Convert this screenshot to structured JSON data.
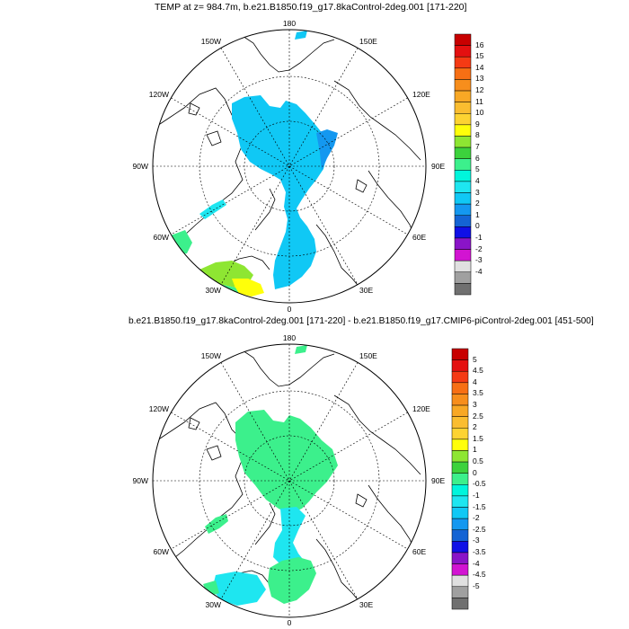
{
  "panel_top": {
    "title": "TEMP at z= 984.7m, b.e21.B1850.f19_g17.8kaControl-2deg.001 [171-220]",
    "labels": {
      "lon_180": "180",
      "lon_0": "0",
      "lon_150W": "150W",
      "lon_150E": "150E",
      "lon_120W": "120W",
      "lon_120E": "120E",
      "lon_90W": "90W",
      "lon_90E": "90E",
      "lon_60W": "60W",
      "lon_60E": "60E",
      "lon_30W": "30W",
      "lon_30E": "30E"
    },
    "colorbar": {
      "labels": [
        "16",
        "15",
        "14",
        "13",
        "12",
        "11",
        "10",
        "9",
        "8",
        "7",
        "6",
        "5",
        "4",
        "3",
        "2",
        "1",
        "0",
        "-1",
        "-2",
        "-3",
        "-4"
      ],
      "colors": [
        "#c80000",
        "#e41010",
        "#f53a14",
        "#f76f14",
        "#f78e1c",
        "#f8a825",
        "#fabd30",
        "#fdd332",
        "#ffff0a",
        "#8ee632",
        "#3cd23c",
        "#3cf08c",
        "#00f5dc",
        "#1ee6f0",
        "#10c8f5",
        "#1498f0",
        "#1464d4",
        "#1010e6",
        "#8a14c8",
        "#d214d2",
        "#e0e0e0",
        "#a0a0a0",
        "#707070"
      ]
    }
  },
  "panel_bottom": {
    "title": "b.e21.B1850.f19_g17.8kaControl-2deg.001 [171-220] - b.e21.B1850.f19_g17.CMIP6-piControl-2deg.001 [451-500]",
    "labels": {
      "lon_180": "180",
      "lon_0": "0",
      "lon_150W": "150W",
      "lon_150E": "150E",
      "lon_120W": "120W",
      "lon_120E": "120E",
      "lon_90W": "90W",
      "lon_90E": "90E",
      "lon_60W": "60W",
      "lon_60E": "60E",
      "lon_30W": "30W",
      "lon_30E": "30E"
    },
    "colorbar": {
      "labels": [
        "5",
        "4.5",
        "4",
        "3.5",
        "3",
        "2.5",
        "2",
        "1.5",
        "1",
        "0.5",
        "0",
        "-0.5",
        "-1",
        "-1.5",
        "-2",
        "-2.5",
        "-3",
        "-3.5",
        "-4",
        "-4.5",
        "-5"
      ],
      "colors": [
        "#c80000",
        "#e41010",
        "#f53a14",
        "#f76f14",
        "#f78e1c",
        "#f8a825",
        "#fabd30",
        "#fdd332",
        "#ffff0a",
        "#8ee632",
        "#3cd23c",
        "#3cf08c",
        "#00f5dc",
        "#1ee6f0",
        "#10c8f5",
        "#1498f0",
        "#1464d4",
        "#1010e6",
        "#8a14c8",
        "#d214d2",
        "#e0e0e0",
        "#a0a0a0",
        "#707070"
      ]
    }
  },
  "colors": {
    "level_4": "#10c8f5",
    "level_2": "#1498f0",
    "level_3": "#1ee6f0",
    "level_6": "#3cf08c",
    "level_8": "#8ee632",
    "level_9": "#ffff0a",
    "diff_0_5": "#3cf08c",
    "diff_neg0_5": "#00f5dc",
    "diff_neg1": "#1ee6f0",
    "coast": "#000000",
    "grid": "#000000"
  }
}
